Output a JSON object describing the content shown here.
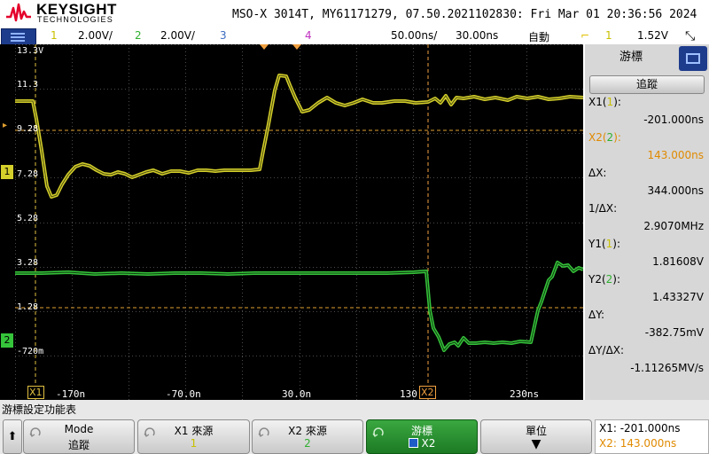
{
  "header": {
    "brand": "KEYSIGHT",
    "brand_sub": "TECHNOLOGIES",
    "instrument_info": "MSO-X 3014T, MY61171279, 07.50.2021102830: Fri Mar 01 20:36:56 2024"
  },
  "status": {
    "ch1_number": "1",
    "ch1_scale": "2.00V/",
    "ch2_number": "2",
    "ch2_scale": "2.00V/",
    "ch3_number": "3",
    "ch4_number": "4",
    "timebase": "50.00ns/",
    "delay": "30.00ns",
    "trigger_mode": "自動",
    "trigger_channel": "1",
    "trigger_level": "1.52V"
  },
  "graticule": {
    "y_labels": [
      "13.3V",
      "11.3",
      "9.28",
      "7.28",
      "5.28",
      "3.28",
      "1.28",
      "-720m"
    ],
    "x_labels": [
      "-170n",
      "-70.0n",
      "30.0n",
      "130",
      "230ns"
    ],
    "x1_marker": "X1",
    "x2_marker": "X2",
    "ch1_marker": "1",
    "ch2_marker": "2",
    "colors": {
      "ch1": "#d4cf2a",
      "ch2": "#35c43a",
      "cursor_y": "#e0a030",
      "cursor_x1": "#e0c040",
      "cursor_x2": "#f0a040",
      "grid": "#4a4a4a"
    }
  },
  "side_panel": {
    "tab_label": "游標",
    "track_button": "追蹤",
    "x1_label": "X1",
    "x1_src": "1",
    "x1_value": "-201.000ns",
    "x2_label": "X2",
    "x2_src": "2",
    "x2_value": "143.000ns",
    "dx_label": "ΔX:",
    "dx_value": "344.000ns",
    "inv_dx_label": "1/ΔX:",
    "inv_dx_value": "2.9070MHz",
    "y1_label": "Y1",
    "y1_src": "1",
    "y1_value": "1.81608V",
    "y2_label": "Y2",
    "y2_src": "2",
    "y2_value": "1.43327V",
    "dy_label": "ΔY:",
    "dy_value": "-382.75mV",
    "dydx_label": "ΔY/ΔX:",
    "dydx_value": "-1.11265MV/s"
  },
  "softkeys": {
    "menu_title": "游標設定功能表",
    "mode_label": "Mode",
    "mode_value": "追蹤",
    "x1_source_label": "X1 來源",
    "x1_source_value": "1",
    "x2_source_label": "X2 來源",
    "x2_source_value": "2",
    "cursor_label": "游標",
    "cursor_value": "X2",
    "units_label": "單位",
    "readout_x1": "X1: -201.000ns",
    "readout_x2": "X2: 143.000ns"
  }
}
